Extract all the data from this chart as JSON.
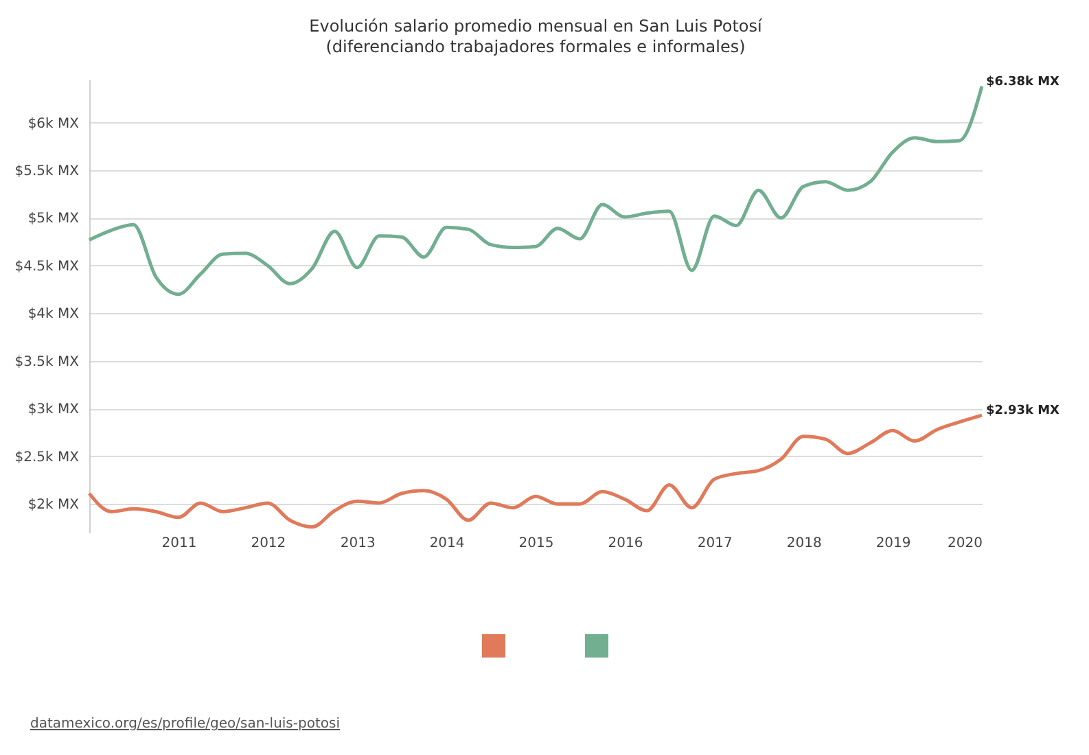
{
  "chart_data": {
    "type": "line",
    "title": "Evolución salario promedio mensual en San Luis Potosí",
    "subtitle": "(diferenciando trabajadores formales e informales)",
    "x": [
      "2010-01",
      "2010-04",
      "2010-07",
      "2010-10",
      "2011-01",
      "2011-04",
      "2011-07",
      "2011-10",
      "2012-01",
      "2012-04",
      "2012-07",
      "2012-10",
      "2013-01",
      "2013-04",
      "2013-07",
      "2013-10",
      "2014-01",
      "2014-04",
      "2014-07",
      "2014-10",
      "2015-01",
      "2015-04",
      "2015-07",
      "2015-10",
      "2016-01",
      "2016-04",
      "2016-07",
      "2016-10",
      "2017-01",
      "2017-04",
      "2017-07",
      "2017-10",
      "2018-01",
      "2018-04",
      "2018-07",
      "2018-10",
      "2019-01",
      "2019-04",
      "2019-07",
      "2019-10",
      "2020-01"
    ],
    "series": [
      {
        "color": "#e07a5a",
        "values": [
          2.11,
          1.92,
          1.95,
          1.92,
          1.86,
          2.01,
          1.92,
          1.96,
          2.01,
          1.83,
          1.76,
          1.93,
          2.03,
          2.01,
          2.11,
          2.14,
          2.05,
          1.83,
          2.01,
          1.96,
          2.08,
          2.0,
          2.0,
          2.13,
          2.05,
          1.93,
          2.2,
          1.96,
          2.26,
          2.32,
          2.35,
          2.47,
          2.71,
          2.68,
          2.53,
          2.64,
          2.77,
          2.66,
          2.78,
          2.86,
          2.93
        ]
      },
      {
        "color": "#72ae90",
        "values": [
          4.77,
          4.87,
          4.93,
          4.38,
          4.2,
          4.41,
          4.62,
          4.63,
          4.5,
          4.31,
          4.47,
          4.86,
          4.48,
          4.81,
          4.8,
          4.59,
          4.9,
          4.88,
          4.72,
          4.69,
          4.7,
          4.89,
          4.78,
          5.14,
          5.01,
          5.05,
          5.07,
          4.45,
          5.02,
          4.92,
          5.29,
          5.0,
          5.33,
          5.38,
          5.29,
          5.38,
          5.69,
          5.84,
          5.8,
          5.81,
          6.38
        ]
      }
    ],
    "xlim": [
      "2010-01",
      "2020-01"
    ],
    "xticks": [
      "2011",
      "2012",
      "2013",
      "2014",
      "2015",
      "2016",
      "2017",
      "2018",
      "2019",
      "2020"
    ],
    "ylim": [
      1.7,
      6.45
    ],
    "yticks": [
      {
        "value": 2,
        "label": "$2k MX"
      },
      {
        "value": 2.5,
        "label": "$2.5k MX"
      },
      {
        "value": 3,
        "label": "$3k MX"
      },
      {
        "value": 3.5,
        "label": "$3.5k MX"
      },
      {
        "value": 4,
        "label": "$4k MX"
      },
      {
        "value": 4.5,
        "label": "$4.5k MX"
      },
      {
        "value": 5,
        "label": "$5k MX"
      },
      {
        "value": 5.5,
        "label": "$5.5k MX"
      },
      {
        "value": 6,
        "label": "$6k MX"
      }
    ],
    "grid": "y",
    "marker": "none",
    "line_style": "solid",
    "annotations": [
      {
        "text": "$6.38k MX",
        "x": "2020-01",
        "y": 6.38
      },
      {
        "text": "$2.93k MX",
        "x": "2020-01",
        "y": 2.93
      },
      "datamexico.org/es/profile/geo/san-luis-potosi"
    ]
  }
}
